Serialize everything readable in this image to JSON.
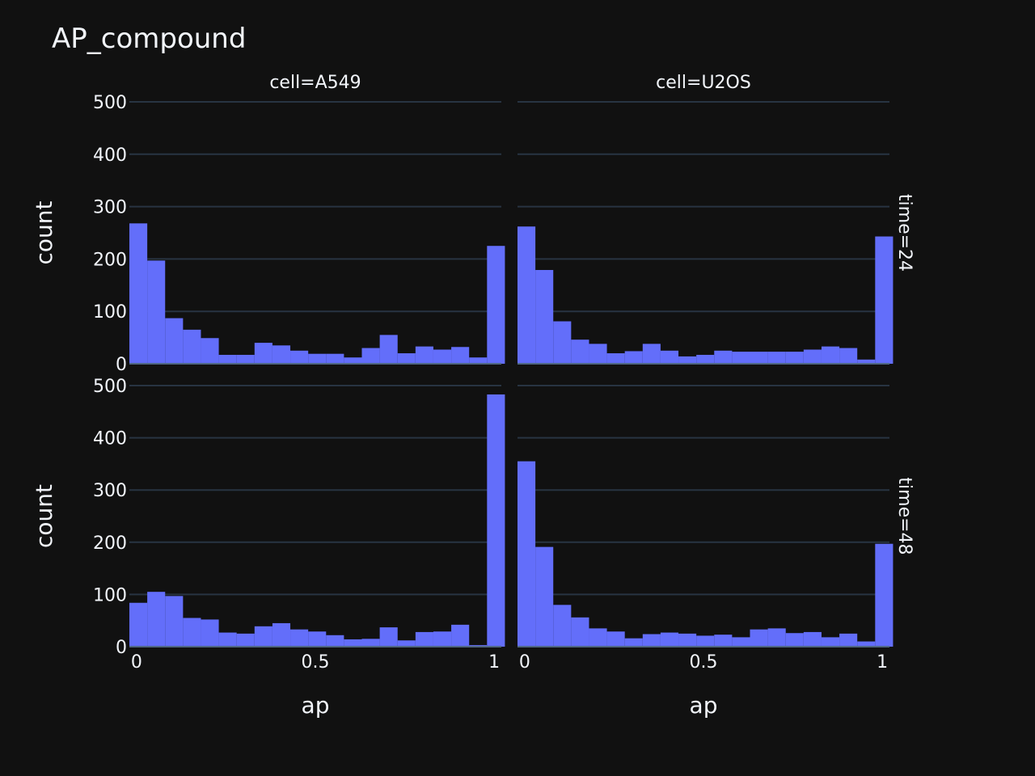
{
  "chart_data": {
    "type": "bar",
    "title": "AP_compound",
    "xlabel": "ap",
    "ylabel": "count",
    "x_ticks": [
      "0",
      "0.5",
      "1"
    ],
    "y_ticks": [
      "0",
      "100",
      "200",
      "300",
      "400",
      "500"
    ],
    "ylim": [
      0,
      500
    ],
    "xlim": [
      -0.02,
      1.02
    ],
    "bin_start": -0.02,
    "bin_size": 0.05,
    "columns": [
      "cell=A549",
      "cell=U2OS"
    ],
    "rows": [
      "time=24",
      "time=48"
    ],
    "colors": {
      "bar": "#636efa",
      "background": "#111111",
      "grid": "#283442",
      "text": "#f2f5fa"
    },
    "panels": [
      {
        "col": 0,
        "row": 0,
        "values": [
          268,
          197,
          87,
          65,
          49,
          17,
          17,
          40,
          35,
          25,
          19,
          19,
          12,
          30,
          55,
          20,
          33,
          27,
          32,
          12,
          225
        ]
      },
      {
        "col": 1,
        "row": 0,
        "values": [
          262,
          179,
          81,
          46,
          38,
          20,
          24,
          38,
          25,
          14,
          17,
          25,
          23,
          23,
          23,
          23,
          27,
          33,
          30,
          8,
          243
        ]
      },
      {
        "col": 0,
        "row": 1,
        "values": [
          84,
          105,
          97,
          55,
          52,
          27,
          25,
          39,
          45,
          33,
          29,
          22,
          14,
          15,
          37,
          12,
          28,
          29,
          42,
          3,
          483
        ]
      },
      {
        "col": 1,
        "row": 1,
        "values": [
          355,
          191,
          80,
          56,
          35,
          29,
          16,
          24,
          27,
          25,
          21,
          23,
          18,
          33,
          35,
          26,
          28,
          18,
          25,
          10,
          197
        ]
      }
    ]
  }
}
